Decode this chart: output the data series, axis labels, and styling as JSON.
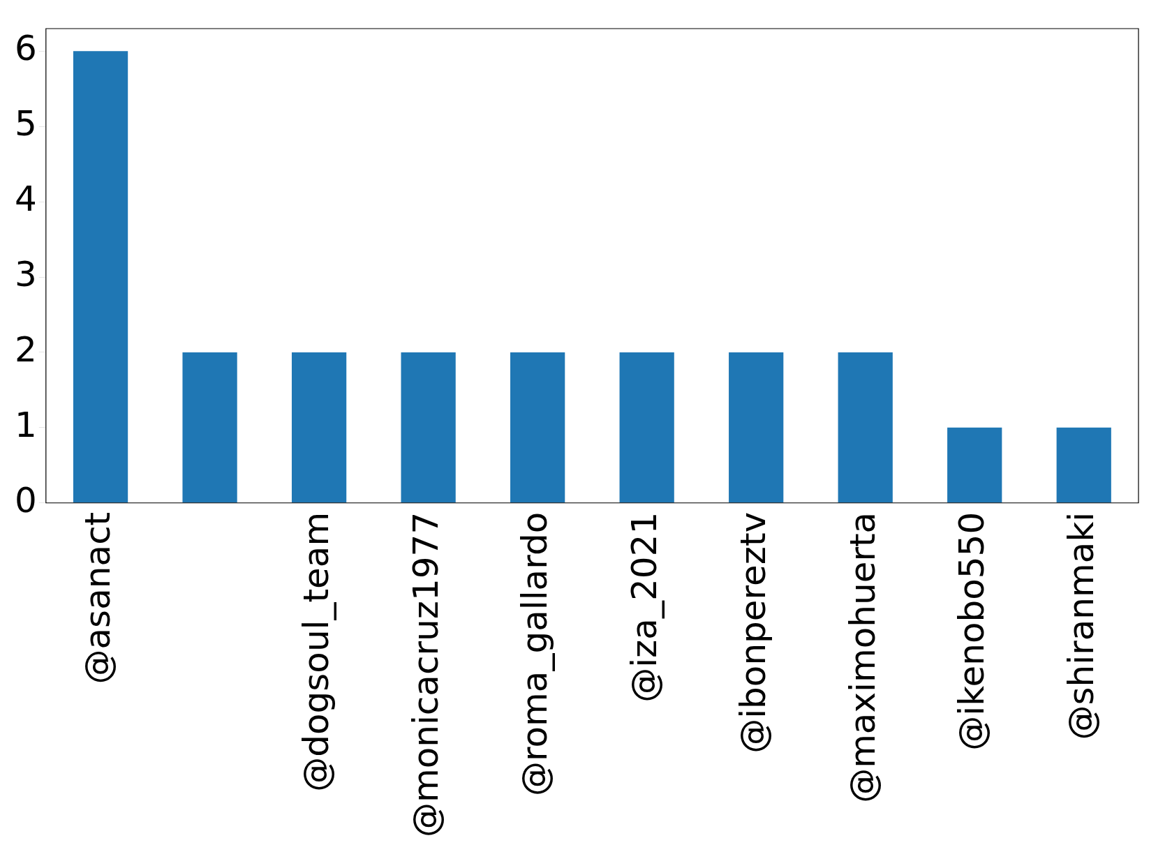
{
  "chart_data": {
    "type": "bar",
    "categories": [
      "@asanact",
      null,
      "@dogsoul_team",
      "@monicacruz1977",
      "@roma_gallardo",
      "@iza_2021",
      "@ibonpereztv",
      "@maximohuerta",
      "@ikenobo550",
      "@shiranmaki"
    ],
    "values": [
      6,
      2,
      2,
      2,
      2,
      2,
      2,
      2,
      1,
      1
    ],
    "color": "#1f77b4",
    "ylim": [
      0,
      6.3
    ],
    "yticks": [
      0,
      1,
      2,
      3,
      4,
      5,
      6
    ],
    "grid": false,
    "legend": false
  }
}
